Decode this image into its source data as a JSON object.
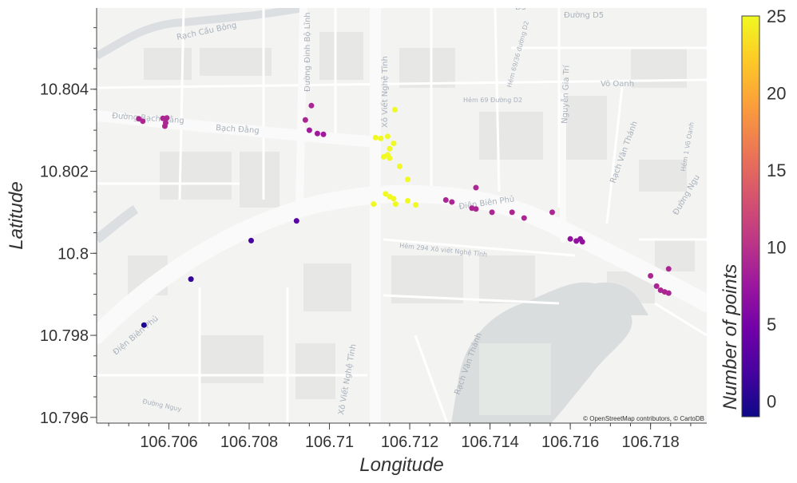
{
  "chart_data": {
    "type": "scatter",
    "xlabel": "Longitude",
    "ylabel": "Latitude",
    "xlim": [
      106.7042,
      106.7194
    ],
    "ylim": [
      10.79586,
      10.80598
    ],
    "xticks": [
      106.706,
      106.708,
      106.71,
      106.712,
      106.714,
      106.716,
      106.718
    ],
    "xtick_labels": [
      "106.706",
      "106.708",
      "106.71",
      "106.712",
      "106.714",
      "106.716",
      "106.718"
    ],
    "yticks": [
      10.796,
      10.798,
      10.8,
      10.802,
      10.804
    ],
    "ytick_labels": [
      "10.796",
      "10.798",
      "10.8",
      "10.802",
      "10.804"
    ],
    "colorbar": {
      "title": "Number of points",
      "range": [
        -1,
        25
      ],
      "ticks": [
        0,
        5,
        10,
        15,
        20,
        25
      ],
      "tick_labels": [
        "0",
        "5",
        "10",
        "15",
        "20",
        "25"
      ],
      "colorscale": [
        "#0d0887",
        "#46039f",
        "#7201a8",
        "#9c179e",
        "#bd3786",
        "#d8576b",
        "#ed7953",
        "#fb9f3a",
        "#fdca26",
        "#f0f921"
      ]
    },
    "attribution": "© OpenStreetMap contributors, © CartoDB",
    "points": [
      {
        "lon": 106.70538,
        "lat": 10.79825,
        "count": 0
      },
      {
        "lon": 106.70655,
        "lat": 10.79937,
        "count": 1
      },
      {
        "lon": 106.70805,
        "lat": 10.80031,
        "count": 2
      },
      {
        "lon": 106.70918,
        "lat": 10.80079,
        "count": 3
      },
      {
        "lon": 106.70525,
        "lat": 10.80328,
        "count": 9
      },
      {
        "lon": 106.70535,
        "lat": 10.80322,
        "count": 9
      },
      {
        "lon": 106.70585,
        "lat": 10.80329,
        "count": 9
      },
      {
        "lon": 106.70595,
        "lat": 10.8033,
        "count": 9
      },
      {
        "lon": 106.70592,
        "lat": 10.80318,
        "count": 9
      },
      {
        "lon": 106.7059,
        "lat": 10.8031,
        "count": 9
      },
      {
        "lon": 106.7094,
        "lat": 10.80325,
        "count": 9
      },
      {
        "lon": 106.70955,
        "lat": 10.8036,
        "count": 9
      },
      {
        "lon": 106.7095,
        "lat": 10.803,
        "count": 8
      },
      {
        "lon": 106.7097,
        "lat": 10.80292,
        "count": 8
      },
      {
        "lon": 106.70985,
        "lat": 10.8029,
        "count": 8
      },
      {
        "lon": 106.71115,
        "lat": 10.80282,
        "count": 25
      },
      {
        "lon": 106.71128,
        "lat": 10.8028,
        "count": 25
      },
      {
        "lon": 106.71145,
        "lat": 10.80285,
        "count": 25
      },
      {
        "lon": 106.7116,
        "lat": 10.80268,
        "count": 25
      },
      {
        "lon": 106.7115,
        "lat": 10.80255,
        "count": 25
      },
      {
        "lon": 106.71145,
        "lat": 10.8024,
        "count": 25
      },
      {
        "lon": 106.71135,
        "lat": 10.80235,
        "count": 25
      },
      {
        "lon": 106.7115,
        "lat": 10.80232,
        "count": 25
      },
      {
        "lon": 106.71175,
        "lat": 10.80212,
        "count": 25
      },
      {
        "lon": 106.71195,
        "lat": 10.8018,
        "count": 25
      },
      {
        "lon": 106.71163,
        "lat": 10.8035,
        "count": 25
      },
      {
        "lon": 106.7114,
        "lat": 10.80145,
        "count": 25
      },
      {
        "lon": 106.7115,
        "lat": 10.80138,
        "count": 25
      },
      {
        "lon": 106.7116,
        "lat": 10.80133,
        "count": 25
      },
      {
        "lon": 106.7111,
        "lat": 10.8012,
        "count": 25
      },
      {
        "lon": 106.71165,
        "lat": 10.8012,
        "count": 25
      },
      {
        "lon": 106.71195,
        "lat": 10.80128,
        "count": 25
      },
      {
        "lon": 106.71215,
        "lat": 10.80118,
        "count": 25
      },
      {
        "lon": 106.7129,
        "lat": 10.8013,
        "count": 9
      },
      {
        "lon": 106.71305,
        "lat": 10.80125,
        "count": 9
      },
      {
        "lon": 106.71365,
        "lat": 10.8016,
        "count": 9
      },
      {
        "lon": 106.71355,
        "lat": 10.8011,
        "count": 9
      },
      {
        "lon": 106.71365,
        "lat": 10.80108,
        "count": 9
      },
      {
        "lon": 106.71405,
        "lat": 10.801,
        "count": 9
      },
      {
        "lon": 106.71455,
        "lat": 10.801,
        "count": 9
      },
      {
        "lon": 106.71485,
        "lat": 10.80086,
        "count": 9
      },
      {
        "lon": 106.71555,
        "lat": 10.801,
        "count": 9
      },
      {
        "lon": 106.716,
        "lat": 10.80035,
        "count": 7
      },
      {
        "lon": 106.71615,
        "lat": 10.8003,
        "count": 7
      },
      {
        "lon": 106.71625,
        "lat": 10.80035,
        "count": 7
      },
      {
        "lon": 106.7163,
        "lat": 10.80028,
        "count": 7
      },
      {
        "lon": 106.718,
        "lat": 10.79945,
        "count": 9
      },
      {
        "lon": 106.71845,
        "lat": 10.79962,
        "count": 9
      },
      {
        "lon": 106.71815,
        "lat": 10.7992,
        "count": 9
      },
      {
        "lon": 106.71825,
        "lat": 10.7991,
        "count": 9
      },
      {
        "lon": 106.71835,
        "lat": 10.79906,
        "count": 9
      },
      {
        "lon": 106.71845,
        "lat": 10.79903,
        "count": 9
      }
    ]
  },
  "map_labels": {
    "rach_cau_bong": "Rạch Cầu Bông",
    "duong_d5": "Đường D5",
    "d5": "D5",
    "dinh_bo_linh": "Đường Đinh Bộ Lĩnh",
    "xo_viet_nghe_tinh_top": "Xô Viết Nghệ Tĩnh",
    "hem_30": "Hẻm 69/36 đường D2",
    "nguyen_gia_tri": "Nguyễn Gia Trí",
    "vo_oanh": "Võ Oanh",
    "hem_69": "Hẻm 69 Đường D2",
    "bach_dang_1": "Đường Bạch Đằng",
    "bach_dang_2": "Bạch Đằng",
    "rach_van_thanh_top": "Rạch Văn Thánh",
    "hem_1": "Hẻm 1 Võ Oanh",
    "duong_ng": "Đường Ngu",
    "dien_bien_phu_right": "Điện Biên Phủ",
    "hem_294": "Hẻm 294 Xô viết Nghệ Tĩnh",
    "dien_bien_phu_left": "Điện Biên Phủ",
    "xo_viet_nghe_tinh_bottom": "Xô Viết Nghệ Tĩnh",
    "rach_van_thanh_bottom": "Rạch Văn Thánh",
    "duong_nguy": "Đường Nguy"
  }
}
